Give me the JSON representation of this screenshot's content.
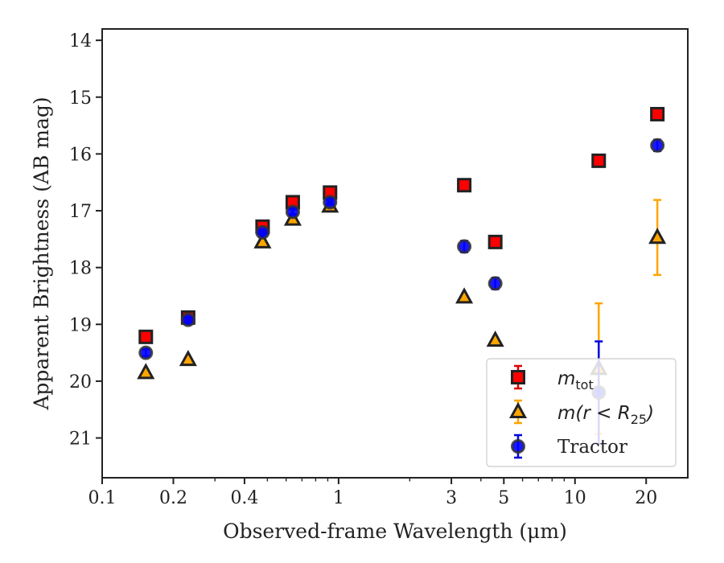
{
  "chart_data": {
    "type": "scatter",
    "xlabel": "Observed-frame Wavelength (μm)",
    "ylabel": "Apparent Brightness (AB mag)",
    "xscale": "log",
    "xlim": [
      0.1,
      30
    ],
    "ylim": [
      21.7,
      13.8
    ],
    "y_inverted": true,
    "x_ticks": [
      0.1,
      0.2,
      0.4,
      1,
      3,
      5,
      10,
      20
    ],
    "x_tick_labels": [
      "0.1",
      "0.2",
      "0.4",
      "1",
      "3",
      "5",
      "10",
      "20"
    ],
    "y_ticks": [
      14,
      15,
      16,
      17,
      18,
      19,
      20,
      21
    ],
    "y_tick_labels": [
      "14",
      "15",
      "16",
      "17",
      "18",
      "19",
      "20",
      "21"
    ],
    "legend_position": "lower-right",
    "grid": false,
    "series": [
      {
        "name": "m_tot",
        "label_main": "m",
        "label_sub": "tot",
        "marker": "square",
        "color": "#ff0000",
        "edge": "#222222",
        "errcolor": "#dd0000",
        "points": [
          {
            "x": 0.153,
            "y": 19.22,
            "err": 0
          },
          {
            "x": 0.231,
            "y": 18.88,
            "err": 0
          },
          {
            "x": 0.477,
            "y": 17.28,
            "err": 0
          },
          {
            "x": 0.64,
            "y": 16.85,
            "err": 0
          },
          {
            "x": 0.92,
            "y": 16.68,
            "err": 0
          },
          {
            "x": 3.4,
            "y": 16.55,
            "err": 0
          },
          {
            "x": 4.6,
            "y": 17.55,
            "err": 0
          },
          {
            "x": 12.6,
            "y": 16.12,
            "err": 0
          },
          {
            "x": 22.3,
            "y": 15.3,
            "err": 0
          }
        ]
      },
      {
        "name": "m(r < R25)",
        "label_main": "m(r < R",
        "label_sub": "25",
        "label_tail": ")",
        "marker": "triangle",
        "color": "#ffa500",
        "edge": "#222222",
        "errcolor": "#ffa500",
        "points": [
          {
            "x": 0.153,
            "y": 19.85,
            "err": 0
          },
          {
            "x": 0.231,
            "y": 19.62,
            "err": 0
          },
          {
            "x": 0.477,
            "y": 17.55,
            "err": 0
          },
          {
            "x": 0.64,
            "y": 17.15,
            "err": 0
          },
          {
            "x": 0.92,
            "y": 16.92,
            "err": 0
          },
          {
            "x": 3.4,
            "y": 18.52,
            "err": 0
          },
          {
            "x": 4.6,
            "y": 19.28,
            "err": 0
          },
          {
            "x": 12.6,
            "y": 19.78,
            "err": 1.15
          },
          {
            "x": 22.3,
            "y": 17.47,
            "err": 0.66
          }
        ]
      },
      {
        "name": "Tractor",
        "marker": "circle",
        "color": "#0000ff",
        "edge": "#333333",
        "errcolor": "#0000dd",
        "points": [
          {
            "x": 0.153,
            "y": 19.5,
            "err": 0.06
          },
          {
            "x": 0.231,
            "y": 18.92,
            "err": 0.04
          },
          {
            "x": 0.477,
            "y": 17.38,
            "err": 0.04
          },
          {
            "x": 0.64,
            "y": 17.02,
            "err": 0.04
          },
          {
            "x": 0.92,
            "y": 16.85,
            "err": 0.04
          },
          {
            "x": 3.4,
            "y": 17.63,
            "err": 0.1
          },
          {
            "x": 4.6,
            "y": 18.28,
            "err": 0.1
          },
          {
            "x": 12.6,
            "y": 20.2,
            "err": 0.9
          },
          {
            "x": 22.3,
            "y": 15.85,
            "err": 0.1
          }
        ]
      }
    ]
  }
}
